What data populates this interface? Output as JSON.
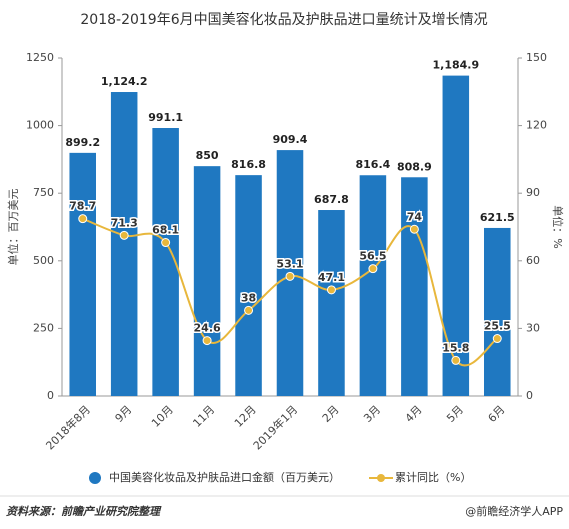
{
  "chart_data": {
    "type": "bar",
    "title": "2018-2019年6月中国美容化妆品及护肤品进口量统计及增长情况",
    "ylabel": "单位：百万美元",
    "y2label": "单位：%",
    "categories": [
      "2018年8月",
      "9月",
      "10月",
      "11月",
      "12月",
      "2019年1月",
      "2月",
      "3月",
      "4月",
      "5月",
      "6月"
    ],
    "series": [
      {
        "name": "中国美容化妆品及护肤品进口金额（百万美元）",
        "type": "bar",
        "color": "#1f78c1",
        "values": [
          899.2,
          1124.2,
          991.1,
          850,
          816.8,
          909.4,
          687.8,
          816.4,
          808.9,
          1184.9,
          621.5
        ],
        "value_labels": [
          "899.2",
          "1,124.2",
          "991.1",
          "850",
          "816.8",
          "909.4",
          "687.8",
          "816.4",
          "808.9",
          "1,184.9",
          "621.5"
        ]
      },
      {
        "name": "累计同比（%）",
        "type": "line",
        "axis": "y2",
        "color": "#e8b73c",
        "values": [
          78.7,
          71.3,
          68.1,
          24.6,
          38,
          53.1,
          47.1,
          56.5,
          74,
          15.8,
          25.5
        ]
      }
    ],
    "ylim": [
      0,
      1250
    ],
    "yticks": [
      0,
      250,
      500,
      750,
      1000,
      1250
    ],
    "y2lim": [
      0,
      150
    ],
    "y2ticks": [
      0,
      30,
      60,
      90,
      120,
      150
    ],
    "source": "资料来源：前瞻产业研究院整理",
    "brand": "@前瞻经济学人APP"
  }
}
